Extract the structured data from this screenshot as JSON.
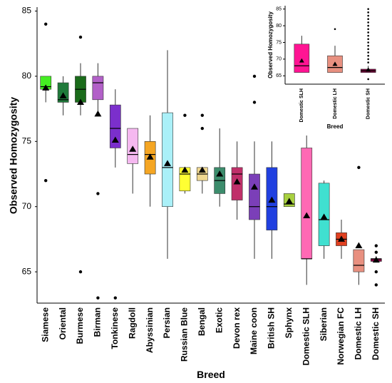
{
  "chart_data": [
    {
      "type": "box",
      "x_label": "Breed",
      "y_label": "Observed Homozygosity",
      "categories": [
        "Siamese",
        "Oriental",
        "Burmese",
        "Birman",
        "Tonkinese",
        "Ragdoll",
        "Abyssinian",
        "Persian",
        "Russian Blue",
        "Bengal",
        "Exotic",
        "Devon rex",
        "Maine coon",
        "British SH",
        "Sphynx",
        "Domestic SLH",
        "Siberian",
        "Norwegian FC",
        "Domestic LH",
        "Domestic SH"
      ],
      "boxes": [
        {
          "whisker_low": 78,
          "q1": 79,
          "median": 79.2,
          "q3": 80,
          "whisker_high": 80,
          "mean": 79.1,
          "outliers": [
            84,
            72
          ],
          "color": "#44ee22"
        },
        {
          "whisker_low": 77,
          "q1": 78,
          "median": 78.2,
          "q3": 79.5,
          "whisker_high": 80,
          "mean": 78.5,
          "outliers": [],
          "color": "#1f7a3a"
        },
        {
          "whisker_low": 77,
          "q1": 78,
          "median": 79,
          "q3": 80,
          "whisker_high": 81,
          "mean": 78,
          "outliers": [
            83,
            65
          ],
          "color": "#1a6b1a"
        },
        {
          "whisker_low": 77,
          "q1": 78.2,
          "median": 79.5,
          "q3": 80,
          "whisker_high": 81,
          "mean": 77.1,
          "outliers": [
            71,
            63
          ],
          "color": "#b260c8"
        },
        {
          "whisker_low": 73,
          "q1": 74.5,
          "median": 76,
          "q3": 77.8,
          "whisker_high": 79,
          "mean": 75.1,
          "outliers": [
            63
          ],
          "color": "#7b2fcc"
        },
        {
          "whisker_low": 71,
          "q1": 73.3,
          "median": 74,
          "q3": 76,
          "whisker_high": 76,
          "mean": 74.4,
          "outliers": [],
          "color": "#f5b8f0"
        },
        {
          "whisker_low": 70,
          "q1": 72.5,
          "median": 74,
          "q3": 75,
          "whisker_high": 77,
          "mean": 73.8,
          "outliers": [],
          "color": "#f5a623"
        },
        {
          "whisker_low": 66,
          "q1": 70,
          "median": 73,
          "q3": 77.2,
          "whisker_high": 82,
          "mean": 73.3,
          "outliers": [],
          "color": "#aaf0f8"
        },
        {
          "whisker_low": 71,
          "q1": 71.2,
          "median": 72.5,
          "q3": 73,
          "whisker_high": 73,
          "mean": 72.8,
          "outliers": [
            77
          ],
          "color": "#ffff33"
        },
        {
          "whisker_low": 71,
          "q1": 72,
          "median": 72.5,
          "q3": 73,
          "whisker_high": 73,
          "mean": 72.8,
          "outliers": [
            77,
            76
          ],
          "color": "#f0d890"
        },
        {
          "whisker_low": 70,
          "q1": 71,
          "median": 72,
          "q3": 73,
          "whisker_high": 76,
          "mean": 72.5,
          "outliers": [],
          "color": "#3c8c6c"
        },
        {
          "whisker_low": 69,
          "q1": 70.5,
          "median": 72.5,
          "q3": 73,
          "whisker_high": 75,
          "mean": 71.9,
          "outliers": [],
          "color": "#c0306a"
        },
        {
          "whisker_low": 66,
          "q1": 69,
          "median": 70,
          "q3": 72.5,
          "whisker_high": 75,
          "mean": 71.5,
          "outliers": [
            80,
            78
          ],
          "color": "#7b3fb8"
        },
        {
          "whisker_low": 66,
          "q1": 68.2,
          "median": 70,
          "q3": 73,
          "whisker_high": 75,
          "mean": 70.5,
          "outliers": [],
          "color": "#2040e0"
        },
        {
          "whisker_low": 70,
          "q1": 70,
          "median": 70.2,
          "q3": 71,
          "whisker_high": 71,
          "mean": 70.4,
          "outliers": [],
          "color": "#a8d040"
        },
        {
          "whisker_low": 64,
          "q1": 66,
          "median": 66,
          "q3": 74.5,
          "whisker_high": 75.8,
          "mean": 69.3,
          "outliers": [],
          "color": "#ff69b4"
        },
        {
          "whisker_low": 66,
          "q1": 67,
          "median": 69,
          "q3": 71.8,
          "whisker_high": 72,
          "mean": 69.2,
          "outliers": [],
          "color": "#40e0d0"
        },
        {
          "whisker_low": 66,
          "q1": 67,
          "median": 67.5,
          "q3": 68,
          "whisker_high": 69,
          "mean": 67.5,
          "outliers": [],
          "color": "#e04020"
        },
        {
          "whisker_low": 64,
          "q1": 65,
          "median": 65.5,
          "q3": 66.7,
          "whisker_high": 66.7,
          "mean": 67,
          "outliers": [
            73
          ],
          "color": "#e89080"
        },
        {
          "whisker_low": 65.8,
          "q1": 65.8,
          "median": 66,
          "q3": 66,
          "whisker_high": 66.2,
          "mean": 65.9,
          "outliers": [
            67,
            66.5,
            65,
            64
          ],
          "color": "#800040"
        }
      ],
      "ylim": [
        62.6,
        85.3
      ],
      "yticks": [
        65,
        70,
        75,
        80,
        85
      ]
    },
    {
      "type": "box",
      "x_label": "Breed",
      "y_label": "Observed Homozygosity",
      "categories": [
        "Domestic SLH",
        "Domestic LH",
        "Domestic SH"
      ],
      "boxes": [
        {
          "whisker_low": 66,
          "q1": 66,
          "median": 68,
          "q3": 74.5,
          "whisker_high": 77,
          "mean": 69.5,
          "outliers": [],
          "color": "#ff1493"
        },
        {
          "whisker_low": 66,
          "q1": 66,
          "median": 67.5,
          "q3": 71,
          "whisker_high": 74,
          "mean": 68.5,
          "outliers": [
            79
          ],
          "color": "#e89080"
        },
        {
          "whisker_low": 66,
          "q1": 66,
          "median": 66.5,
          "q3": 67,
          "whisker_high": 68,
          "mean": 66.8,
          "outliers": [
            64,
            69,
            70,
            71,
            72,
            73,
            74,
            75,
            76,
            77,
            78,
            79,
            80,
            81,
            82,
            83,
            84,
            85
          ],
          "color": "#800040"
        }
      ],
      "ylim": [
        62.5,
        86
      ],
      "yticks": [
        65,
        70,
        75,
        80,
        85
      ]
    }
  ]
}
